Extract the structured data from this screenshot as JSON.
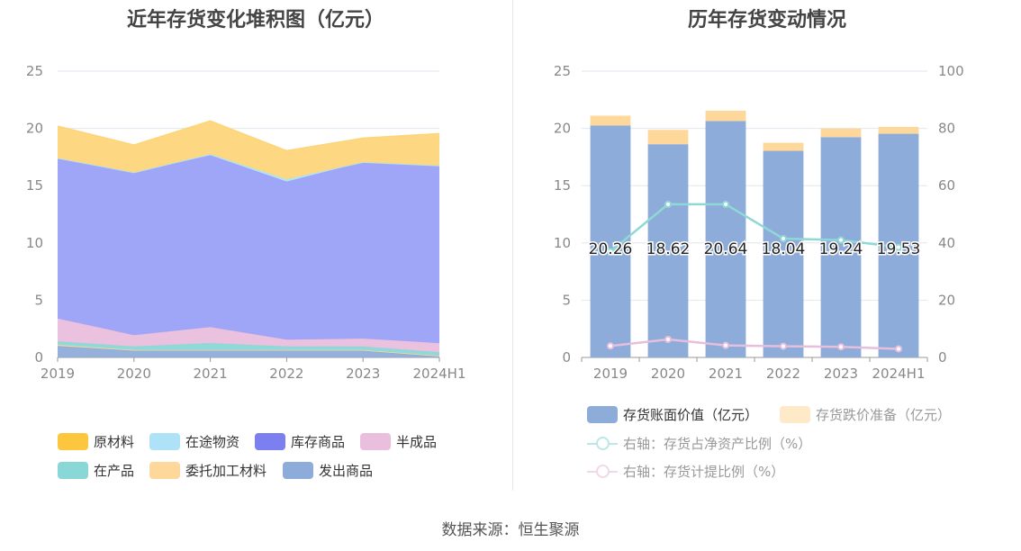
{
  "source_label": "数据来源：恒生聚源",
  "chart_data": [
    {
      "type": "area",
      "title": "近年存货变化堆积图（亿元）",
      "stacked": true,
      "categories": [
        "2019",
        "2020",
        "2021",
        "2022",
        "2023",
        "2024H1"
      ],
      "ylim": [
        0,
        25
      ],
      "yticks": [
        "0",
        "5",
        "10",
        "15",
        "20",
        "25"
      ],
      "grid": true,
      "legend_position": "bottom",
      "series": [
        {
          "name": "发出商品",
          "color": "#8eacd9",
          "values": [
            1.0,
            0.6,
            0.6,
            0.6,
            0.6,
            0.1
          ]
        },
        {
          "name": "委托加工材料",
          "color": "#fdd89a",
          "values": [
            0.1,
            0.05,
            0.05,
            0.05,
            0.05,
            0.05
          ]
        },
        {
          "name": "在产品",
          "color": "#89d8d7",
          "values": [
            0.3,
            0.3,
            0.6,
            0.3,
            0.3,
            0.3
          ]
        },
        {
          "name": "半成品",
          "color": "#e9bfdd",
          "values": [
            2.0,
            1.0,
            1.4,
            0.6,
            0.7,
            0.8
          ]
        },
        {
          "name": "库存商品",
          "color": "#9aa1f7",
          "values": [
            14.0,
            14.2,
            15.0,
            13.8,
            15.4,
            15.5
          ]
        },
        {
          "name": "在途物资",
          "color": "#aee3f7",
          "values": [
            0.0,
            0.0,
            0.1,
            0.2,
            0.0,
            0.0
          ]
        },
        {
          "name": "原材料",
          "color": "#fdd57a",
          "values": [
            2.8,
            2.4,
            2.9,
            2.5,
            2.1,
            2.8
          ]
        }
      ],
      "legend_order": [
        "原材料",
        "在途物资",
        "库存商品",
        "半成品",
        "在产品",
        "委托加工材料",
        "发出商品"
      ],
      "legend_colors": {
        "原材料": "#fdc63f",
        "在途物资": "#aee3f7",
        "库存商品": "#7b7ff0",
        "半成品": "#e9bfdd",
        "在产品": "#89d8d7",
        "委托加工材料": "#fdd89a",
        "发出商品": "#8eacd9"
      }
    },
    {
      "type": "bar",
      "title": "历年存货变动情况",
      "stacked": true,
      "categories": [
        "2019",
        "2020",
        "2021",
        "2022",
        "2023",
        "2024H1"
      ],
      "ylim": [
        0,
        25
      ],
      "yticks": [
        "0",
        "5",
        "10",
        "15",
        "20",
        "25"
      ],
      "y2lim": [
        0,
        100
      ],
      "y2ticks": [
        "0",
        "20",
        "40",
        "60",
        "80",
        "100"
      ],
      "grid": true,
      "legend_position": "bottom",
      "series": [
        {
          "name": "存货账面价值（亿元）",
          "color": "#8eacd9",
          "axis": "left",
          "values": [
            20.26,
            18.62,
            20.64,
            18.04,
            19.24,
            19.53
          ],
          "labels": [
            "20.26",
            "18.62",
            "20.64",
            "18.04",
            "19.24",
            "19.53"
          ]
        },
        {
          "name": "存货跌价准备（亿元）",
          "color": "#fdd89a",
          "axis": "left",
          "values": [
            0.85,
            1.25,
            0.9,
            0.7,
            0.75,
            0.6
          ]
        },
        {
          "name": "右轴：存货占净资产比例（%）",
          "color": "#8ed8d6",
          "axis": "right",
          "type": "line",
          "values": [
            37,
            53.5,
            53.5,
            41.5,
            41,
            38.5
          ]
        },
        {
          "name": "右轴：存货计提比例（%）",
          "color": "#e7bfdc",
          "axis": "right",
          "type": "line",
          "values": [
            4,
            6.3,
            4.2,
            3.9,
            3.7,
            3
          ]
        }
      ]
    }
  ]
}
